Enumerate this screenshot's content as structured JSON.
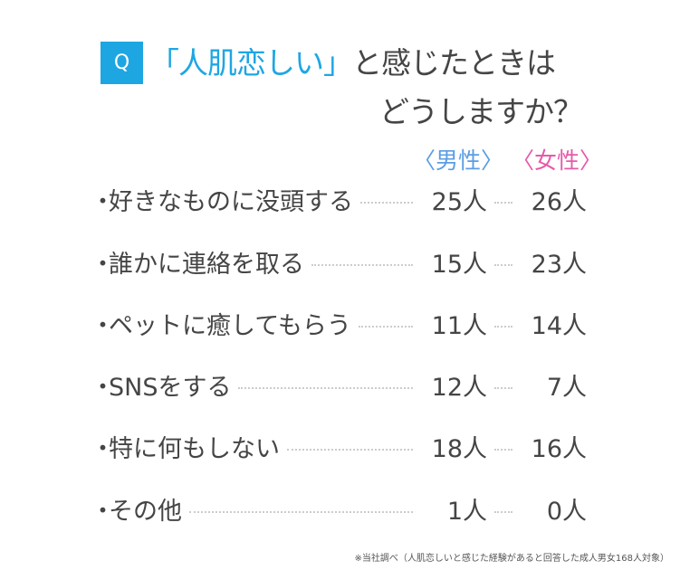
{
  "question": {
    "badge": "Q",
    "highlight": "「人肌恋しい」",
    "line1_rest": "と感じたときは",
    "line2": "どうしますか？"
  },
  "headers": {
    "male": "〈男性〉",
    "female": "〈女性〉"
  },
  "colors": {
    "accent": "#1ea6e3",
    "male": "#5b9de3",
    "female": "#e65aab",
    "text": "#454545"
  },
  "rows": [
    {
      "bullet": "・",
      "label": "好きなものに没頭する",
      "male": "25人",
      "female": "26人"
    },
    {
      "bullet": "・",
      "label": "誰かに連絡を取る",
      "male": "15人",
      "female": "23人"
    },
    {
      "bullet": "・",
      "label": "ペットに癒してもらう",
      "male": "11人",
      "female": "14人"
    },
    {
      "bullet": "・",
      "label": "SNSをする",
      "male": "12人",
      "female": "7人"
    },
    {
      "bullet": "・",
      "label": "特に何もしない",
      "male": "18人",
      "female": "16人"
    },
    {
      "bullet": "・",
      "label": "その他",
      "male": "1人",
      "female": "0人"
    }
  ],
  "note": "※当社調べ（人肌恋しいと感じた経験があると回答した成人男女168人対象）"
}
